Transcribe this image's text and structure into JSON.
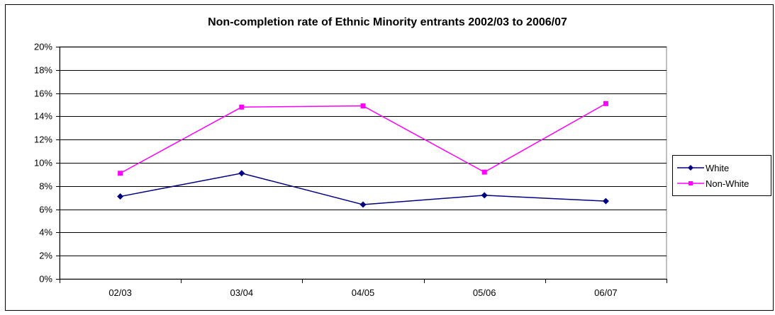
{
  "chart_data": {
    "type": "line",
    "title": "Non-completion rate of Ethnic Minority entrants 2002/03 to 2006/07",
    "categories": [
      "02/03",
      "03/04",
      "04/05",
      "05/06",
      "06/07"
    ],
    "series": [
      {
        "name": "White",
        "values": [
          7.1,
          9.1,
          6.4,
          7.2,
          6.7
        ],
        "color": "#000080",
        "marker": "diamond"
      },
      {
        "name": "Non-White",
        "values": [
          9.1,
          14.8,
          14.9,
          9.2,
          15.1
        ],
        "color": "#FF00FF",
        "marker": "square"
      }
    ],
    "ylim": [
      0,
      20
    ],
    "yticks": [
      "0%",
      "2%",
      "4%",
      "6%",
      "8%",
      "10%",
      "12%",
      "14%",
      "16%",
      "18%",
      "20%"
    ],
    "grid": true,
    "legend": "right"
  }
}
